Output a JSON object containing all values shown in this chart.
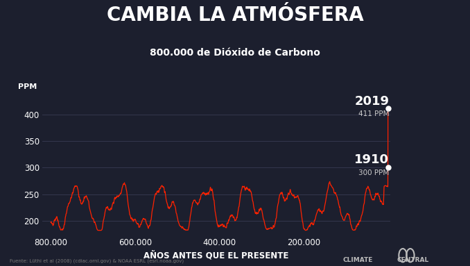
{
  "title": "CAMBIA LA ATMÓSFERA",
  "subtitle": "800.000 de Dióxido de Carbono",
  "ylabel": "PPM",
  "xlabel": "AÑOS ANTES QUE EL PRESENTE",
  "source": "Fuente: Lüthi et al (2008) (cdiac.ornl.gov) & NOAA ESRL (esrl.noaa.gov)",
  "bg_color": "#1c1f2e",
  "line_color": "#ff2200",
  "text_color": "#ffffff",
  "grid_color": "#383b52",
  "yticks": [
    200,
    250,
    300,
    350,
    400
  ],
  "xticks": [
    800000,
    600000,
    400000,
    200000
  ],
  "xtick_labels": [
    "800.000",
    "600.000",
    "400.000",
    "200.000"
  ],
  "ylim": [
    175,
    435
  ],
  "xlim": [
    820000,
    -5000
  ],
  "annotation_1910_year": "1910",
  "annotation_1910_ppm": "300 PPM",
  "annotation_2019_year": "2019",
  "annotation_2019_ppm": "411 PPM"
}
